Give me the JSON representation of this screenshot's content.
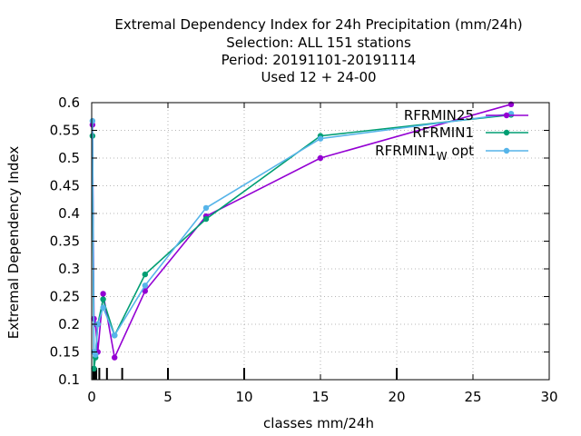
{
  "chart_data": {
    "type": "line",
    "title_lines": [
      "Extremal Dependency Index  for 24h Precipitation (mm/24h)",
      "Selection: ALL    151 stations",
      "Period: 20191101-20191114",
      "Used  12 + 24-00"
    ],
    "xlabel": "classes mm/24h",
    "ylabel": "Extremal Dependency Index",
    "xlim": [
      0,
      30
    ],
    "ylim": [
      0.1,
      0.6
    ],
    "x_ticks": [
      0,
      5,
      10,
      15,
      20,
      25,
      30
    ],
    "y_ticks": [
      0.1,
      0.15,
      0.2,
      0.25,
      0.3,
      0.35,
      0.4,
      0.45,
      0.5,
      0.55,
      0.6
    ],
    "class_marks": [
      0.1,
      0.2,
      0.3,
      0.5,
      1,
      2,
      5,
      10,
      20
    ],
    "grid": true,
    "legend_position": "top-right",
    "series": [
      {
        "name": "RFRMIN25",
        "color": "#9400d3",
        "x": [
          0.05,
          0.15,
          0.25,
          0.4,
          0.75,
          1.5,
          3.5,
          7.5,
          15,
          27.5
        ],
        "y": [
          0.56,
          0.21,
          0.2,
          0.15,
          0.255,
          0.14,
          0.26,
          0.395,
          0.5,
          0.597
        ]
      },
      {
        "name": "RFRMIN1",
        "color": "#009e73",
        "x": [
          0.05,
          0.15,
          0.25,
          0.4,
          0.75,
          1.5,
          3.5,
          7.5,
          15,
          27.5
        ],
        "y": [
          0.54,
          0.12,
          0.14,
          0.2,
          0.245,
          0.18,
          0.29,
          0.39,
          0.54,
          0.578
        ]
      },
      {
        "name": "RFRMIN1",
        "name_subscript": "W",
        "name_suffix": "opt",
        "color": "#56b4e9",
        "x": [
          0.05,
          0.15,
          0.25,
          0.4,
          0.75,
          1.5,
          3.5,
          7.5,
          15,
          27.5
        ],
        "y": [
          0.567,
          0.15,
          0.145,
          0.2,
          0.23,
          0.18,
          0.27,
          0.41,
          0.535,
          0.58
        ]
      }
    ]
  }
}
